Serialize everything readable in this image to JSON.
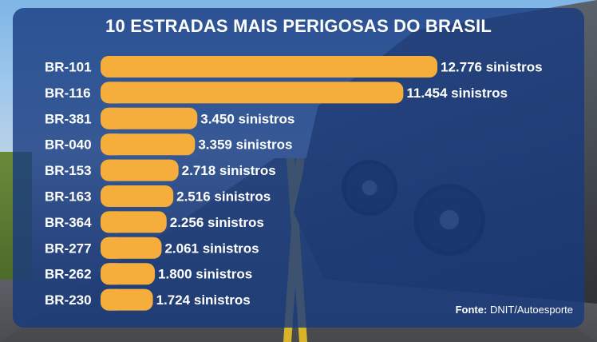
{
  "chart_data": {
    "type": "bar",
    "orientation": "horizontal",
    "title": "10 ESTRADAS MAIS PERIGOSAS DO BRASIL",
    "categories": [
      "BR-101",
      "BR-116",
      "BR-381",
      "BR-040",
      "BR-153",
      "BR-163",
      "BR-364",
      "BR-277",
      "BR-262",
      "BR-230"
    ],
    "values": [
      12776,
      11454,
      3450,
      3359,
      2718,
      2516,
      2256,
      2061,
      1800,
      1724
    ],
    "value_labels": [
      "12.776 sinistros",
      "11.454 sinistros",
      "3.450 sinistros",
      "3.359 sinistros",
      "2.718 sinistros",
      "2.516 sinistros",
      "2.256 sinistros",
      "2.061 sinistros",
      "1.800 sinistros",
      "1.724 sinistros"
    ],
    "bar_color": "#f5ad3c",
    "grid": false,
    "legend": "none"
  },
  "source": {
    "label": "Fonte:",
    "text": "DNIT/Autoesporte"
  },
  "colors": {
    "panel": "#163a80",
    "text": "#ffffff",
    "bar": "#f5ad3c"
  }
}
